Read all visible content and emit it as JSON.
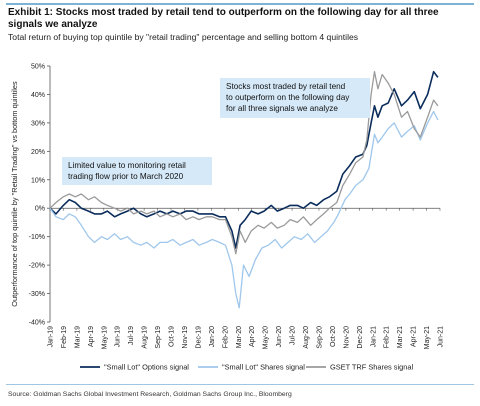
{
  "header": {
    "title": "Exhibit 1: Stocks most traded by retail tend to outperform on the following day for all three signals we analyze",
    "subtitle": "Total return of buying top quintile by \"retail trading\" percentage and selling bottom 4 quintiles"
  },
  "footer": {
    "source": "Source: Goldman Sachs Global Investment Research, Goldman Sachs Group Inc., Bloomberg"
  },
  "chart_data": {
    "type": "line",
    "ylabel": "Outperformance of top quintile by \"Retail Trading\" vs bottom quintiles",
    "ylim": [
      -40,
      50
    ],
    "yticks": [
      -40,
      -30,
      -20,
      -10,
      0,
      10,
      20,
      30,
      40,
      50
    ],
    "ytick_labels": [
      "-40%",
      "-30%",
      "-20%",
      "-10%",
      "0%",
      "10%",
      "20%",
      "30%",
      "40%",
      "50%"
    ],
    "xlim": [
      "2019-01-01",
      "2021-06-30"
    ],
    "xtick_labels": [
      "Jan-19",
      "Feb-19",
      "Mar-19",
      "Apr-19",
      "May-19",
      "Jun-19",
      "Jul-19",
      "Aug-19",
      "Sep-19",
      "Oct-19",
      "Nov-19",
      "Dec-19",
      "Jan-20",
      "Feb-20",
      "Mar-20",
      "Apr-20",
      "May-20",
      "Jun-20",
      "Jul-20",
      "Aug-20",
      "Sep-20",
      "Oct-20",
      "Nov-20",
      "Dec-20",
      "Jan-21",
      "Feb-21",
      "Mar-21",
      "Apr-21",
      "May-21",
      "Jun-21"
    ],
    "grid": false,
    "legend_position": "bottom",
    "annotations": [
      {
        "lines": [
          "Stocks most traded by retail tend",
          "to outperform on the following day",
          "for all three signals we analyze"
        ],
        "x": "2020-11-20",
        "y": 37
      },
      {
        "lines": [
          "Limited value to monitoring retail",
          "trading flow prior to March 2020"
        ],
        "x": "2019-06-20",
        "y": 5
      }
    ],
    "series": [
      {
        "name": "\"Small Lot\" Options signal",
        "color": "#0b2d5c",
        "points": [
          [
            "2019-01-01",
            0
          ],
          [
            "2019-01-15",
            -2
          ],
          [
            "2019-02-01",
            1
          ],
          [
            "2019-02-15",
            3
          ],
          [
            "2019-03-01",
            2
          ],
          [
            "2019-03-15",
            0
          ],
          [
            "2019-04-01",
            -1
          ],
          [
            "2019-04-15",
            -2
          ],
          [
            "2019-05-01",
            -2
          ],
          [
            "2019-05-15",
            -1
          ],
          [
            "2019-06-01",
            -3
          ],
          [
            "2019-06-15",
            -2
          ],
          [
            "2019-07-01",
            -1
          ],
          [
            "2019-07-15",
            0
          ],
          [
            "2019-08-01",
            -2
          ],
          [
            "2019-08-15",
            -3
          ],
          [
            "2019-09-01",
            -2
          ],
          [
            "2019-09-15",
            -1
          ],
          [
            "2019-10-01",
            -2
          ],
          [
            "2019-10-15",
            -1
          ],
          [
            "2019-11-01",
            -2
          ],
          [
            "2019-11-15",
            -1
          ],
          [
            "2019-12-01",
            -1
          ],
          [
            "2019-12-15",
            -2
          ],
          [
            "2020-01-01",
            -2
          ],
          [
            "2020-01-15",
            -2
          ],
          [
            "2020-02-01",
            -3
          ],
          [
            "2020-02-15",
            -3
          ],
          [
            "2020-03-01",
            -8
          ],
          [
            "2020-03-10",
            -14
          ],
          [
            "2020-03-20",
            -6
          ],
          [
            "2020-04-01",
            -4
          ],
          [
            "2020-04-15",
            -1
          ],
          [
            "2020-05-01",
            -2
          ],
          [
            "2020-05-15",
            -1
          ],
          [
            "2020-06-01",
            1
          ],
          [
            "2020-06-15",
            -1
          ],
          [
            "2020-07-01",
            0
          ],
          [
            "2020-07-15",
            1
          ],
          [
            "2020-08-01",
            1
          ],
          [
            "2020-08-15",
            0
          ],
          [
            "2020-09-01",
            2
          ],
          [
            "2020-09-15",
            1
          ],
          [
            "2020-10-01",
            3
          ],
          [
            "2020-10-15",
            4
          ],
          [
            "2020-11-01",
            6
          ],
          [
            "2020-11-15",
            12
          ],
          [
            "2020-12-01",
            15
          ],
          [
            "2020-12-15",
            18
          ],
          [
            "2021-01-01",
            19
          ],
          [
            "2021-01-10",
            22
          ],
          [
            "2021-01-20",
            30
          ],
          [
            "2021-01-28",
            36
          ],
          [
            "2021-02-05",
            32
          ],
          [
            "2021-02-15",
            36
          ],
          [
            "2021-03-01",
            37
          ],
          [
            "2021-03-15",
            42
          ],
          [
            "2021-04-01",
            36
          ],
          [
            "2021-04-15",
            38
          ],
          [
            "2021-05-01",
            41
          ],
          [
            "2021-05-15",
            35
          ],
          [
            "2021-06-01",
            40
          ],
          [
            "2021-06-15",
            48
          ],
          [
            "2021-06-25",
            46
          ]
        ]
      },
      {
        "name": "\"Small Lot\" Shares signal",
        "color": "#9fc7ec",
        "points": [
          [
            "2019-01-01",
            0
          ],
          [
            "2019-01-15",
            -3
          ],
          [
            "2019-02-01",
            -4
          ],
          [
            "2019-02-15",
            -2
          ],
          [
            "2019-03-01",
            -3
          ],
          [
            "2019-03-15",
            -6
          ],
          [
            "2019-04-01",
            -10
          ],
          [
            "2019-04-15",
            -12
          ],
          [
            "2019-05-01",
            -10
          ],
          [
            "2019-05-15",
            -11
          ],
          [
            "2019-06-01",
            -9
          ],
          [
            "2019-06-15",
            -11
          ],
          [
            "2019-07-01",
            -10
          ],
          [
            "2019-07-15",
            -12
          ],
          [
            "2019-08-01",
            -13
          ],
          [
            "2019-08-15",
            -12
          ],
          [
            "2019-09-01",
            -14
          ],
          [
            "2019-09-15",
            -12
          ],
          [
            "2019-10-01",
            -12
          ],
          [
            "2019-10-15",
            -11
          ],
          [
            "2019-11-01",
            -13
          ],
          [
            "2019-11-15",
            -12
          ],
          [
            "2019-12-01",
            -11
          ],
          [
            "2019-12-15",
            -13
          ],
          [
            "2020-01-01",
            -12
          ],
          [
            "2020-01-15",
            -11
          ],
          [
            "2020-02-01",
            -12
          ],
          [
            "2020-02-15",
            -13
          ],
          [
            "2020-03-01",
            -20
          ],
          [
            "2020-03-10",
            -30
          ],
          [
            "2020-03-18",
            -35
          ],
          [
            "2020-03-28",
            -20
          ],
          [
            "2020-04-10",
            -24
          ],
          [
            "2020-04-25",
            -18
          ],
          [
            "2020-05-10",
            -14
          ],
          [
            "2020-05-25",
            -13
          ],
          [
            "2020-06-10",
            -11
          ],
          [
            "2020-06-25",
            -14
          ],
          [
            "2020-07-10",
            -12
          ],
          [
            "2020-07-25",
            -10
          ],
          [
            "2020-08-10",
            -11
          ],
          [
            "2020-08-25",
            -9
          ],
          [
            "2020-09-10",
            -12
          ],
          [
            "2020-09-25",
            -10
          ],
          [
            "2020-10-10",
            -8
          ],
          [
            "2020-10-25",
            -5
          ],
          [
            "2020-11-05",
            -2
          ],
          [
            "2020-11-20",
            3
          ],
          [
            "2020-12-01",
            5
          ],
          [
            "2020-12-15",
            8
          ],
          [
            "2021-01-01",
            10
          ],
          [
            "2021-01-15",
            14
          ],
          [
            "2021-01-28",
            26
          ],
          [
            "2021-02-05",
            23
          ],
          [
            "2021-02-15",
            25
          ],
          [
            "2021-03-01",
            28
          ],
          [
            "2021-03-15",
            30
          ],
          [
            "2021-04-01",
            25
          ],
          [
            "2021-04-15",
            27
          ],
          [
            "2021-05-01",
            29
          ],
          [
            "2021-05-15",
            24
          ],
          [
            "2021-06-01",
            30
          ],
          [
            "2021-06-15",
            34
          ],
          [
            "2021-06-25",
            31
          ]
        ]
      },
      {
        "name": "GSET TRF Shares signal",
        "color": "#9a9a9a",
        "points": [
          [
            "2019-01-01",
            0
          ],
          [
            "2019-01-15",
            2
          ],
          [
            "2019-02-01",
            4
          ],
          [
            "2019-02-15",
            5
          ],
          [
            "2019-03-01",
            4
          ],
          [
            "2019-03-15",
            5
          ],
          [
            "2019-04-01",
            3
          ],
          [
            "2019-04-15",
            4
          ],
          [
            "2019-05-01",
            2
          ],
          [
            "2019-05-15",
            1
          ],
          [
            "2019-06-01",
            0
          ],
          [
            "2019-06-15",
            -1
          ],
          [
            "2019-07-01",
            0
          ],
          [
            "2019-07-15",
            -2
          ],
          [
            "2019-08-01",
            -1
          ],
          [
            "2019-08-15",
            -2
          ],
          [
            "2019-09-01",
            -1
          ],
          [
            "2019-09-15",
            -3
          ],
          [
            "2019-10-01",
            -2
          ],
          [
            "2019-10-15",
            -3
          ],
          [
            "2019-11-01",
            -2
          ],
          [
            "2019-11-15",
            -4
          ],
          [
            "2019-12-01",
            -3
          ],
          [
            "2019-12-15",
            -4
          ],
          [
            "2020-01-01",
            -3
          ],
          [
            "2020-01-15",
            -3
          ],
          [
            "2020-02-01",
            -4
          ],
          [
            "2020-02-15",
            -4
          ],
          [
            "2020-03-01",
            -10
          ],
          [
            "2020-03-10",
            -16
          ],
          [
            "2020-03-20",
            -8
          ],
          [
            "2020-04-01",
            -12
          ],
          [
            "2020-04-15",
            -8
          ],
          [
            "2020-05-01",
            -6
          ],
          [
            "2020-05-15",
            -7
          ],
          [
            "2020-06-01",
            -5
          ],
          [
            "2020-06-15",
            -7
          ],
          [
            "2020-07-01",
            -6
          ],
          [
            "2020-07-15",
            -4
          ],
          [
            "2020-08-01",
            -5
          ],
          [
            "2020-08-15",
            -3
          ],
          [
            "2020-09-01",
            -6
          ],
          [
            "2020-09-15",
            -4
          ],
          [
            "2020-10-01",
            -2
          ],
          [
            "2020-10-15",
            0
          ],
          [
            "2020-11-01",
            2
          ],
          [
            "2020-11-15",
            8
          ],
          [
            "2020-12-01",
            12
          ],
          [
            "2020-12-15",
            16
          ],
          [
            "2021-01-01",
            18
          ],
          [
            "2021-01-10",
            24
          ],
          [
            "2021-01-20",
            40
          ],
          [
            "2021-01-28",
            48
          ],
          [
            "2021-02-05",
            42
          ],
          [
            "2021-02-15",
            47
          ],
          [
            "2021-03-01",
            44
          ],
          [
            "2021-03-15",
            40
          ],
          [
            "2021-04-01",
            32
          ],
          [
            "2021-04-15",
            34
          ],
          [
            "2021-05-01",
            28
          ],
          [
            "2021-05-15",
            25
          ],
          [
            "2021-06-01",
            32
          ],
          [
            "2021-06-15",
            38
          ],
          [
            "2021-06-25",
            36
          ]
        ]
      }
    ]
  }
}
